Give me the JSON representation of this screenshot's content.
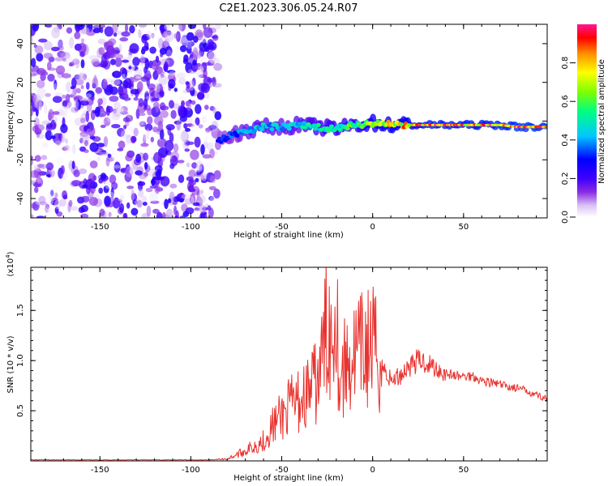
{
  "title": "C2E1.2023.306.05.24.R07",
  "colors": {
    "snr_line": "#e8332f",
    "colormap": [
      "#ffffff",
      "#d9c3f5",
      "#8a2be2",
      "#4b00ff",
      "#0000ff",
      "#00c8ff",
      "#00ff7f",
      "#7fff00",
      "#ffff00",
      "#ff8c00",
      "#ff0000",
      "#ff1493"
    ]
  },
  "chart_data": [
    {
      "type": "heatmap",
      "name": "spectrogram",
      "xlabel": "Height of straight line (km)",
      "ylabel": "Frequency (Hz)",
      "xlim": [
        -188,
        96
      ],
      "ylim": [
        -50,
        50
      ],
      "xticks": [
        "-150",
        "-100",
        "-50",
        "0",
        "50"
      ],
      "yticks": [
        "40",
        "20",
        "0",
        "-20",
        "-40"
      ],
      "colorbar": {
        "label": "Normalized spectral amplitude",
        "range": [
          0,
          1
        ],
        "ticks": [
          "0.0",
          "0.2",
          "0.4",
          "0.6",
          "0.8"
        ]
      },
      "ridge": {
        "x": [
          -85,
          -80,
          -70,
          -60,
          -50,
          -40,
          -30,
          -20,
          -10,
          0,
          10,
          20,
          30,
          40,
          50,
          60,
          70,
          80,
          90
        ],
        "frequency": [
          -10,
          -8,
          -5,
          -3,
          -3,
          -2,
          -3,
          -4,
          -2,
          -1,
          -2,
          -2,
          -2,
          -2,
          -2,
          -2,
          -2,
          -3,
          -3
        ],
        "amplitude": [
          0.3,
          0.35,
          0.45,
          0.5,
          0.45,
          0.5,
          0.55,
          0.6,
          0.6,
          0.75,
          0.8,
          0.85,
          0.9,
          0.9,
          0.9,
          0.9,
          0.92,
          0.95,
          0.95
        ]
      },
      "noise_region": {
        "x_from": -188,
        "x_to": -85,
        "amplitude_max": 0.25
      }
    },
    {
      "type": "line",
      "name": "snr",
      "xlabel": "Height of straight line (km)",
      "ylabel": "SNR (10 * v/v)",
      "yscale_label": "(x10",
      "yscale_exp": "4",
      "xlim": [
        -188,
        96
      ],
      "ylim": [
        0,
        1.93
      ],
      "xticks": [
        "-150",
        "-100",
        "-50",
        "0",
        "50"
      ],
      "yticks": [
        "0.5",
        "1.0",
        "1.5"
      ],
      "series": [
        {
          "x": [
            -188,
            -160,
            -130,
            -100,
            -90,
            -80,
            -70,
            -60,
            -55,
            -50,
            -45,
            -40,
            -35,
            -30,
            -28,
            -25,
            -22,
            -20,
            -19,
            -18,
            -15,
            -10,
            -5,
            0,
            5,
            10,
            15,
            20,
            25,
            30,
            35,
            40,
            45,
            50,
            55,
            60,
            65,
            70,
            75,
            80,
            85,
            90,
            96
          ],
          "y": [
            0.01,
            0.01,
            0.01,
            0.01,
            0.01,
            0.02,
            0.1,
            0.2,
            0.35,
            0.45,
            0.55,
            0.6,
            0.7,
            0.8,
            1.0,
            1.4,
            1.2,
            1.9,
            1.0,
            0.8,
            0.95,
            1.05,
            1.1,
            1.15,
            0.95,
            0.8,
            0.85,
            0.95,
            1.0,
            0.98,
            0.92,
            0.88,
            0.85,
            0.84,
            0.85,
            0.8,
            0.78,
            0.76,
            0.74,
            0.72,
            0.7,
            0.66,
            0.62
          ]
        }
      ]
    }
  ]
}
